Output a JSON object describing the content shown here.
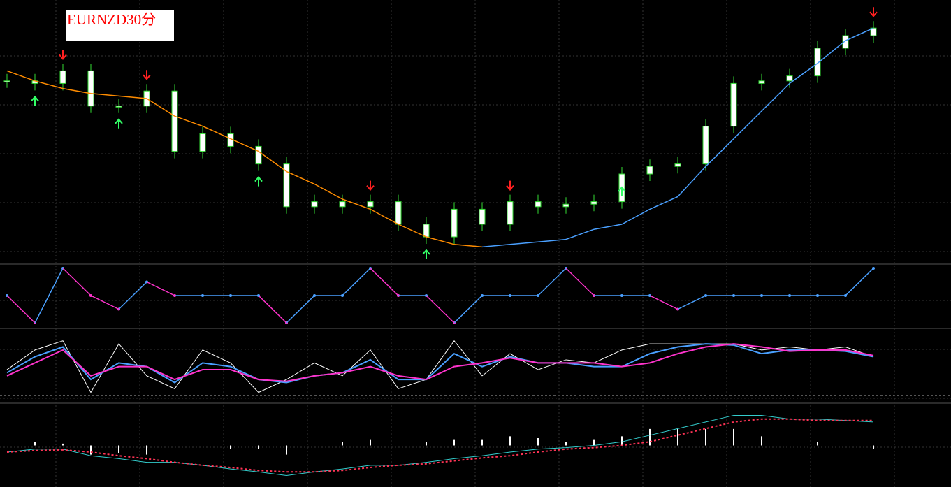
{
  "chart_data": [
    {
      "type": "candlestick",
      "title": "EURNZD30分",
      "ylim": [
        0,
        100
      ],
      "close": [
        72,
        71,
        76,
        62,
        62,
        68,
        44,
        51,
        46,
        39,
        22,
        24,
        22,
        24,
        15,
        10,
        21,
        15,
        24,
        22,
        23,
        24,
        35,
        38,
        39,
        54,
        71,
        72,
        74,
        85,
        90,
        93
      ],
      "ma": [
        76,
        72,
        69,
        67,
        66,
        65,
        58,
        54,
        49,
        44,
        36,
        31,
        25,
        21,
        15,
        10,
        7,
        6,
        7,
        8,
        9,
        13,
        15,
        21,
        26,
        38,
        49,
        60,
        71,
        79,
        88,
        93
      ],
      "candle_color": "#ffffff",
      "wick_color": "#33dd33",
      "ma_down_color": "#ff8c00",
      "ma_up_color": "#4aa0ff",
      "signals_down": [
        2,
        5,
        13,
        18,
        31
      ],
      "signals_up": [
        1,
        4,
        9,
        15,
        22
      ],
      "down_color": "#ff2020",
      "up_color": "#33ff66",
      "grid": true
    },
    {
      "type": "step",
      "ylim": [
        0,
        4
      ],
      "values": [
        2,
        0,
        4,
        2,
        1,
        3,
        2,
        2,
        2,
        2,
        0,
        2,
        2,
        4,
        2,
        2,
        0,
        2,
        2,
        2,
        4,
        2,
        2,
        2,
        1,
        2,
        2,
        2,
        2,
        2,
        2,
        4
      ],
      "rise_color": "#4aa0ff",
      "fall_color": "#ff33cc"
    },
    {
      "type": "line",
      "ylim": [
        0,
        100
      ],
      "series": [
        {
          "color": "#ffffff",
          "values": [
            42,
            74,
            89,
            5,
            84,
            32,
            11,
            74,
            53,
            5,
            26,
            53,
            32,
            74,
            11,
            26,
            89,
            32,
            68,
            42,
            58,
            53,
            74,
            84,
            84,
            84,
            84,
            74,
            79,
            74,
            79,
            63
          ]
        },
        {
          "color": "#4aa0ff",
          "values": [
            37,
            63,
            79,
            26,
            53,
            47,
            21,
            53,
            47,
            26,
            21,
            32,
            37,
            58,
            26,
            26,
            68,
            47,
            63,
            53,
            53,
            47,
            47,
            68,
            79,
            84,
            82,
            68,
            74,
            74,
            72,
            63
          ]
        },
        {
          "color": "#ff33cc",
          "values": [
            32,
            53,
            74,
            32,
            47,
            47,
            26,
            42,
            42,
            26,
            23,
            32,
            37,
            47,
            32,
            26,
            47,
            53,
            61,
            53,
            53,
            53,
            47,
            53,
            68,
            79,
            84,
            79,
            72,
            74,
            74,
            65
          ]
        }
      ]
    },
    {
      "type": "line",
      "ylim": [
        0,
        100
      ],
      "series": [
        {
          "color": "#33cccc",
          "values": [
            41,
            45,
            45,
            36,
            32,
            27,
            27,
            23,
            18,
            14,
            9,
            14,
            18,
            23,
            23,
            27,
            32,
            36,
            41,
            45,
            47,
            50,
            55,
            64,
            73,
            82,
            91,
            91,
            86,
            86,
            84,
            82
          ]
        },
        {
          "color": "#ff3355",
          "dashed": true,
          "values": [
            41,
            43,
            44,
            41,
            36,
            32,
            27,
            23,
            20,
            16,
            14,
            14,
            16,
            20,
            23,
            25,
            29,
            33,
            36,
            41,
            45,
            47,
            50,
            55,
            64,
            73,
            82,
            86,
            86,
            84,
            84,
            84
          ]
        }
      ],
      "histogram": [
        0,
        2,
        1,
        -5,
        -4,
        -5,
        0,
        0,
        -2,
        -2,
        -5,
        0,
        2,
        3,
        0,
        2,
        3,
        3,
        5,
        4,
        2,
        3,
        5,
        9,
        9,
        9,
        9,
        5,
        0,
        2,
        0,
        -2
      ],
      "hist_ylim": [
        -20,
        20
      ],
      "hist_color": "#ffffff"
    }
  ]
}
